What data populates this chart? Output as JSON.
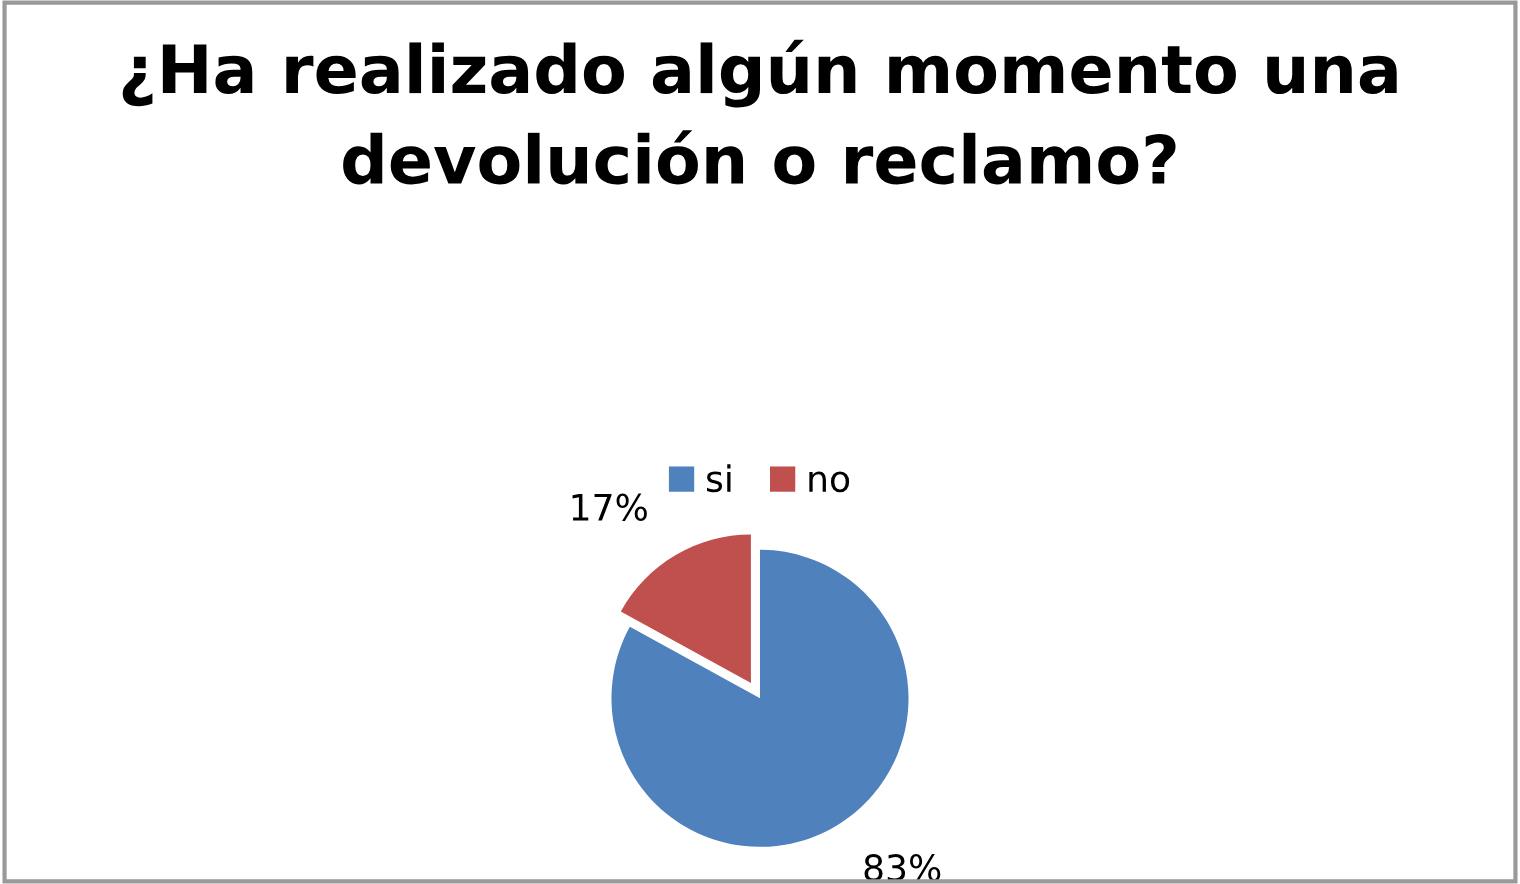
{
  "chart_data": {
    "type": "pie",
    "title": "¿Ha realizado algún momento una devolución o reclamo?",
    "categories": [
      "si",
      "no"
    ],
    "values": [
      83,
      17
    ],
    "colors": [
      "#4f81bd",
      "#c0504d"
    ],
    "value_labels": [
      "83%",
      "17%"
    ],
    "legend": "top"
  }
}
